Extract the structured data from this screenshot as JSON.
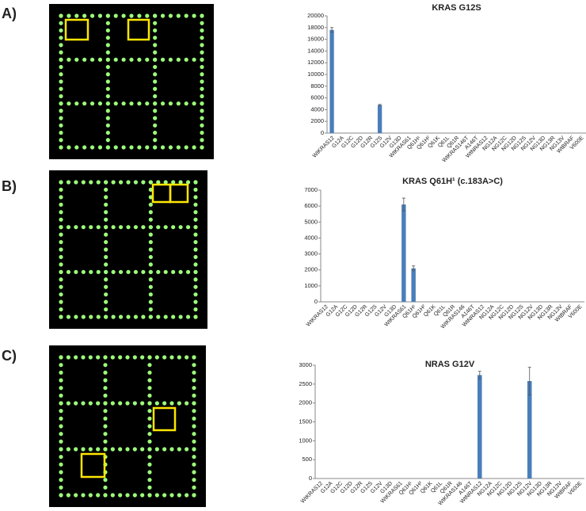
{
  "panels": [
    "A)",
    "B)",
    "C)"
  ],
  "chart_data": [
    {
      "type": "bar",
      "title": "KRAS G12S",
      "color": "#4a7ebb",
      "categories": [
        "WtKRAS12",
        "G12A",
        "G12C",
        "G12D",
        "G12R",
        "G12S",
        "G12V",
        "G13D",
        "WtKRAS61",
        "Q61H¹",
        "Q61H²",
        "Q61K",
        "Q61L",
        "Q61R",
        "WtKRAS146T",
        "A146T",
        "WtNRAS12",
        "NG12A",
        "NG12C",
        "NG12D",
        "NG12S",
        "NG12V",
        "NG13D",
        "NG13R",
        "NG13V",
        "WtBRAF",
        "V600E"
      ],
      "values": [
        17600,
        0,
        0,
        0,
        0,
        4800,
        0,
        0,
        0,
        0,
        0,
        0,
        0,
        0,
        0,
        0,
        0,
        0,
        0,
        0,
        0,
        0,
        0,
        0,
        0,
        0,
        0
      ],
      "errors": [
        400,
        null,
        null,
        null,
        null,
        100,
        null,
        null,
        null,
        null,
        null,
        null,
        null,
        null,
        null,
        null,
        null,
        null,
        null,
        null,
        null,
        null,
        null,
        null,
        null,
        null,
        null
      ],
      "ylim": [
        0,
        20000
      ],
      "yticks": [
        0,
        2000,
        4000,
        6000,
        8000,
        10000,
        12000,
        14000,
        16000,
        18000,
        20000
      ]
    },
    {
      "type": "bar",
      "title": "KRAS Q61H¹ (c.183A>C)",
      "color": "#4a7ebb",
      "categories": [
        "WtKRAS12",
        "G12A",
        "G12C",
        "G12D",
        "G12R",
        "G12S",
        "G12V",
        "G13D",
        "WtKRAS61",
        "Q61H¹",
        "Q61H²",
        "Q61K",
        "Q61L",
        "Q61R",
        "WtKRAS146",
        "A146T",
        "WtNRAS12",
        "NG12A",
        "NG12C",
        "NG12D",
        "NG12S",
        "NG12V",
        "NG13D",
        "NG13R",
        "NG13V",
        "WtBRAF",
        "V600E"
      ],
      "values": [
        0,
        0,
        0,
        0,
        0,
        0,
        0,
        0,
        6100,
        2100,
        0,
        0,
        0,
        0,
        0,
        0,
        0,
        0,
        0,
        0,
        0,
        0,
        0,
        0,
        0,
        0,
        0
      ],
      "errors": [
        null,
        null,
        null,
        null,
        null,
        null,
        null,
        null,
        400,
        150,
        null,
        null,
        null,
        null,
        null,
        null,
        null,
        null,
        null,
        null,
        null,
        null,
        null,
        null,
        null,
        null,
        null
      ],
      "ylim": [
        0,
        7000
      ],
      "yticks": [
        0,
        1000,
        2000,
        3000,
        4000,
        5000,
        6000,
        7000
      ]
    },
    {
      "type": "bar",
      "title": "NRAS G12V",
      "color": "#4a7ebb",
      "categories": [
        "WtKRAS12",
        "G12A",
        "G12C",
        "G12D",
        "G12R",
        "G12S",
        "G12V",
        "G13D",
        "WtKRAS61",
        "Q61H¹",
        "Q61H²",
        "Q61K",
        "Q61L",
        "Q61R",
        "WtKRAS146",
        "A146T",
        "WtNRAS12",
        "NG12A",
        "NG12C",
        "NG12D",
        "NG12S",
        "NG12V",
        "NG13D",
        "NG13R",
        "NG13V",
        "WtBRAF",
        "V600E"
      ],
      "values": [
        0,
        0,
        0,
        0,
        0,
        0,
        0,
        0,
        0,
        0,
        0,
        0,
        0,
        0,
        0,
        0,
        2740,
        0,
        0,
        0,
        0,
        2580,
        0,
        0,
        0,
        0,
        0
      ],
      "errors": [
        null,
        null,
        null,
        null,
        null,
        null,
        null,
        null,
        null,
        null,
        null,
        null,
        null,
        null,
        null,
        null,
        100,
        null,
        null,
        null,
        null,
        370,
        null,
        null,
        null,
        null,
        null
      ],
      "ylim": [
        0,
        3000
      ],
      "yticks": [
        0,
        500,
        1000,
        1500,
        2000,
        2500,
        3000
      ]
    }
  ]
}
